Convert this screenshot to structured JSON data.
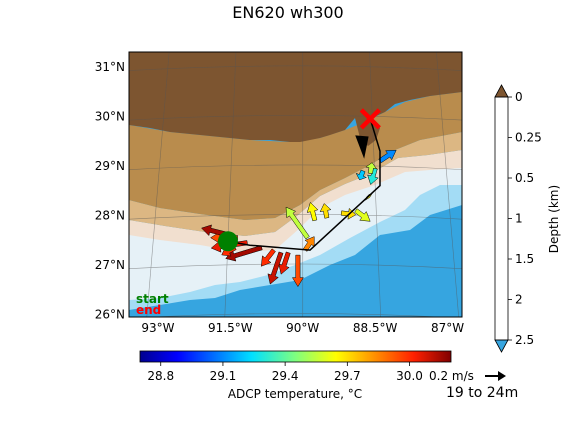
{
  "title": "EN620 wh300",
  "axes": {
    "lat_ticks": [
      {
        "lat": 31,
        "label": "31°N"
      },
      {
        "lat": 30,
        "label": "30°N"
      },
      {
        "lat": 29,
        "label": "29°N"
      },
      {
        "lat": 28,
        "label": "28°N"
      },
      {
        "lat": 27,
        "label": "27°N"
      },
      {
        "lat": 26,
        "label": "26°N"
      }
    ],
    "lon_ticks": [
      {
        "lon": -93,
        "label": "93°W"
      },
      {
        "lon": -91.5,
        "label": "91.5°W"
      },
      {
        "lon": -90,
        "label": "90°W"
      },
      {
        "lon": -88.5,
        "label": "88.5°W"
      },
      {
        "lon": -87,
        "label": "87°W"
      }
    ]
  },
  "legend": {
    "start_label": "start",
    "end_label": "end",
    "start_color": "#008000",
    "end_color": "#ff0000"
  },
  "depth_colorbar": {
    "label": "Depth (km)",
    "ticks": [
      "0",
      "0.25",
      "0.5",
      "1",
      "1.5",
      "2",
      "2.5"
    ],
    "colors": [
      "#7d5530",
      "#b98c4d",
      "#dcb783",
      "#f1dfcf",
      "#e6f1f7",
      "#a3dcf5",
      "#36a5e0"
    ]
  },
  "temperature_colorbar": {
    "label": "ADCP temperature, °C",
    "ticks": [
      "28.8",
      "29.1",
      "29.4",
      "29.7",
      "30.0"
    ],
    "range": [
      28.7,
      30.2
    ]
  },
  "scale": {
    "label": "0.2 m/s",
    "depth_range": "19 to 24m"
  },
  "chart_data": {
    "type": "map",
    "extent": {
      "lon": [
        -93.6,
        -86.7
      ],
      "lat": [
        25.95,
        31.3
      ]
    },
    "track": [
      {
        "lon": -88.6,
        "lat": 29.95
      },
      {
        "lon": -88.4,
        "lat": 29.3
      },
      {
        "lon": -88.4,
        "lat": 28.6
      },
      {
        "lon": -89.85,
        "lat": 27.3
      },
      {
        "lon": -91.1,
        "lat": 27.4
      },
      {
        "lon": -91.55,
        "lat": 27.48
      }
    ],
    "start": {
      "lon": -91.55,
      "lat": 27.48
    },
    "end": {
      "lon": -88.6,
      "lat": 29.95
    },
    "velocity_vectors": [
      {
        "lon": -88.4,
        "lat": 29.1,
        "u": 0.18,
        "v": 0.12,
        "temp": 29.1
      },
      {
        "lon": -88.5,
        "lat": 28.95,
        "u": -0.05,
        "v": -0.18,
        "temp": 29.3
      },
      {
        "lon": -88.75,
        "lat": 28.9,
        "u": -0.04,
        "v": -0.1,
        "temp": 29.2
      },
      {
        "lon": -88.6,
        "lat": 28.85,
        "u": 0.02,
        "v": 0.12,
        "temp": 29.55
      },
      {
        "lon": -88.65,
        "lat": 28.4,
        "u": 0.02,
        "v": -0.02,
        "temp": 29.65
      },
      {
        "lon": -88.9,
        "lat": 28.1,
        "u": 0.16,
        "v": -0.12,
        "temp": 29.6
      },
      {
        "lon": -89.2,
        "lat": 28.05,
        "u": 0.16,
        "v": -0.02,
        "temp": 29.7
      },
      {
        "lon": -89.5,
        "lat": 27.95,
        "u": -0.03,
        "v": 0.16,
        "temp": 29.7
      },
      {
        "lon": -89.75,
        "lat": 27.9,
        "u": -0.05,
        "v": 0.2,
        "temp": 29.65
      },
      {
        "lon": -89.9,
        "lat": 27.55,
        "u": -0.24,
        "v": 0.34,
        "temp": 29.55
      },
      {
        "lon": -89.95,
        "lat": 27.3,
        "u": 0.1,
        "v": 0.15,
        "temp": 29.85
      },
      {
        "lon": -90.1,
        "lat": 27.2,
        "u": 0.0,
        "v": -0.35,
        "temp": 29.95
      },
      {
        "lon": -90.3,
        "lat": 27.25,
        "u": -0.08,
        "v": -0.24,
        "temp": 30.05
      },
      {
        "lon": -90.45,
        "lat": 27.25,
        "u": -0.12,
        "v": -0.35,
        "temp": 30.1
      },
      {
        "lon": -90.6,
        "lat": 27.3,
        "u": -0.14,
        "v": -0.18,
        "temp": 30.0
      },
      {
        "lon": -90.85,
        "lat": 27.35,
        "u": -0.4,
        "v": -0.12,
        "temp": 30.15
      },
      {
        "lon": -91.15,
        "lat": 27.45,
        "u": -0.4,
        "v": -0.06,
        "temp": 30.05
      },
      {
        "lon": -91.35,
        "lat": 27.55,
        "u": -0.3,
        "v": 0.0,
        "temp": 29.95
      },
      {
        "lon": -91.5,
        "lat": 27.6,
        "u": -0.32,
        "v": 0.08,
        "temp": 30.15
      },
      {
        "lon": -91.4,
        "lat": 27.35,
        "u": -0.15,
        "v": -0.08,
        "temp": 30.0
      }
    ]
  }
}
